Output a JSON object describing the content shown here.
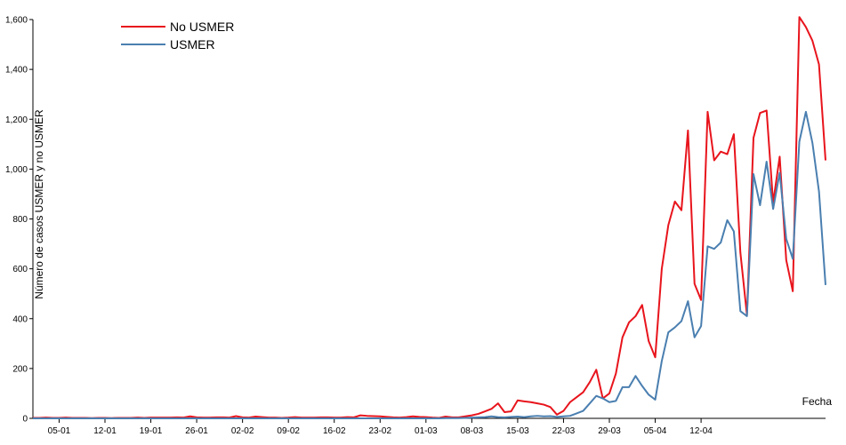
{
  "chart_data": {
    "type": "line",
    "xlabel": "Fecha",
    "ylabel": "Número de casos USMER y no USMER",
    "ylim": [
      0,
      1600
    ],
    "yticks": [
      0,
      200,
      400,
      600,
      800,
      1000,
      1200,
      1400,
      1600
    ],
    "ytick_labels": [
      "0",
      "200",
      "400",
      "600",
      "800",
      "1,000",
      "1,200",
      "1,400",
      "1,600"
    ],
    "x_start": "2020-01-01",
    "xticks": [
      "05-01",
      "12-01",
      "19-01",
      "26-01",
      "02-02",
      "09-02",
      "16-02",
      "23-02",
      "01-03",
      "08-03",
      "15-03",
      "22-03",
      "29-03",
      "05-04",
      "12-04"
    ],
    "xtick_dates": [
      "2020-01-05",
      "2020-01-12",
      "2020-01-19",
      "2020-01-26",
      "2020-02-02",
      "2020-02-09",
      "2020-02-16",
      "2020-02-23",
      "2020-03-01",
      "2020-03-08",
      "2020-03-15",
      "2020-03-22",
      "2020-03-29",
      "2020-04-05",
      "2020-04-12"
    ],
    "legend_position": "top-left",
    "colors": {
      "No USMER": "#e8141c",
      "USMER": "#4a7fb0"
    },
    "series": [
      {
        "name": "No USMER",
        "values": [
          2,
          2,
          3,
          2,
          2,
          3,
          2,
          2,
          2,
          1,
          2,
          2,
          1,
          2,
          2,
          2,
          3,
          2,
          3,
          3,
          3,
          3,
          4,
          3,
          8,
          4,
          3,
          3,
          4,
          4,
          3,
          9,
          4,
          3,
          7,
          5,
          3,
          3,
          2,
          3,
          5,
          3,
          3,
          3,
          4,
          4,
          3,
          3,
          5,
          4,
          12,
          10,
          9,
          8,
          6,
          4,
          3,
          5,
          8,
          6,
          5,
          3,
          2,
          7,
          4,
          4,
          8,
          12,
          18,
          28,
          38,
          60,
          25,
          28,
          72,
          68,
          65,
          60,
          55,
          45,
          15,
          30,
          65,
          85,
          105,
          145,
          195,
          80,
          100,
          180,
          325,
          385,
          410,
          455,
          310,
          245,
          600,
          775,
          870,
          835,
          1155,
          540,
          475,
          1230,
          1035,
          1070,
          1060,
          1140,
          665,
          415,
          1125,
          1225,
          1235,
          865,
          1050,
          635,
          510,
          1610,
          1570,
          1515,
          1420,
          1035
        ]
      },
      {
        "name": "USMER",
        "values": [
          0,
          0,
          0,
          0,
          0,
          0,
          0,
          0,
          0,
          0,
          0,
          0,
          0,
          0,
          0,
          0,
          0,
          0,
          0,
          0,
          0,
          0,
          0,
          0,
          0,
          0,
          0,
          0,
          0,
          0,
          0,
          0,
          0,
          0,
          0,
          0,
          0,
          0,
          0,
          0,
          0,
          0,
          0,
          0,
          0,
          0,
          0,
          0,
          0,
          0,
          0,
          0,
          0,
          0,
          0,
          0,
          0,
          0,
          0,
          0,
          0,
          0,
          0,
          1,
          1,
          1,
          2,
          3,
          4,
          5,
          8,
          5,
          4,
          6,
          7,
          5,
          8,
          10,
          8,
          9,
          6,
          8,
          10,
          20,
          30,
          60,
          90,
          80,
          65,
          70,
          125,
          125,
          170,
          130,
          95,
          75,
          230,
          345,
          365,
          390,
          470,
          325,
          370,
          690,
          680,
          705,
          795,
          750,
          430,
          410,
          980,
          855,
          1030,
          840,
          985,
          720,
          640,
          1110,
          1230,
          1105,
          910,
          535
        ]
      }
    ]
  }
}
